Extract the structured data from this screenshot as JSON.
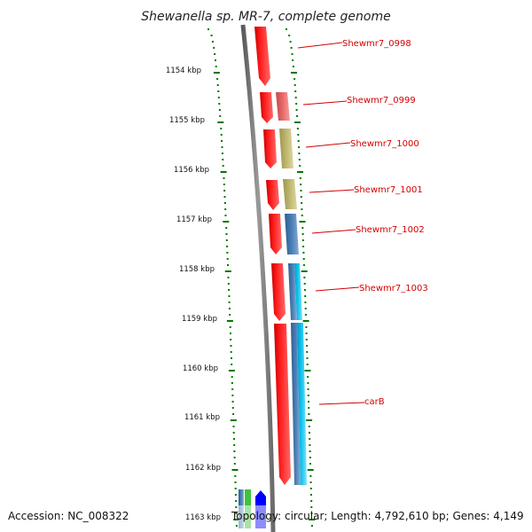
{
  "title": "Shewanella sp. MR-7, complete genome",
  "footer": {
    "accession": "Accession: NC_008322",
    "topology": "Topology: circular; Length: 4,792,610 bp; Genes: 4,149"
  },
  "kbp_labels": [
    "1154 kbp",
    "1155 kbp",
    "1156 kbp",
    "1157 kbp",
    "1158 kbp",
    "1159 kbp",
    "1160 kbp",
    "1161 kbp",
    "1162 kbp",
    "1163 kbp"
  ],
  "gene_labels": [
    "Shewmr7_0998",
    "Shewmr7_0999",
    "Shewmr7_1000",
    "Shewmr7_1001",
    "Shewmr7_1002",
    "Shewmr7_1003",
    "carB"
  ],
  "colors": {
    "forward_gene": "#ff0000",
    "tick": "#007700",
    "backbone": "#7a7a7a",
    "label": "#d40000",
    "cog_pink": "#e86a6a",
    "cog_olive": "#bfb870",
    "cog_steel": "#4a7fb5",
    "cog_cyan": "#18c8f0",
    "cog_green": "#3cc43c",
    "cog_blue": "#0000ff"
  }
}
